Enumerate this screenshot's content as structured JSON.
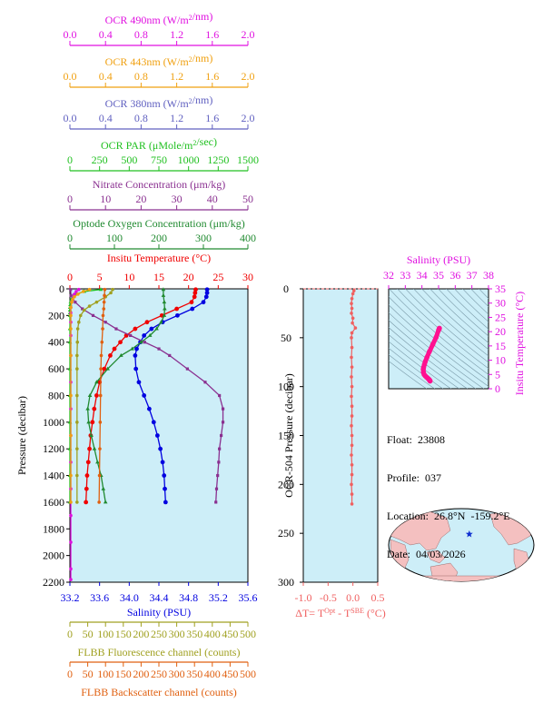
{
  "chart_data": [
    {
      "type": "line",
      "title": "",
      "ylabel": "Pressure (decibar)",
      "ylim": [
        2200,
        0
      ],
      "yticks": [
        0,
        200,
        400,
        600,
        800,
        1000,
        1200,
        1400,
        1600,
        1800,
        2000,
        2200
      ],
      "axes": {
        "ocr490": {
          "label": "OCR 490nm (W/m²/nm)",
          "range": [
            0,
            2
          ],
          "ticks": [
            "0.0",
            "0.4",
            "0.8",
            "1.2",
            "1.6",
            "2.0"
          ],
          "color": "#e010e0"
        },
        "ocr443": {
          "label": "OCR 443nm (W/m²/nm)",
          "range": [
            0,
            2
          ],
          "ticks": [
            "0.0",
            "0.4",
            "0.8",
            "1.2",
            "1.6",
            "2.0"
          ],
          "color": "#f0a010"
        },
        "ocr380": {
          "label": "OCR 380nm (W/m²/nm)",
          "range": [
            0,
            2
          ],
          "ticks": [
            "0.0",
            "0.4",
            "0.8",
            "1.2",
            "1.6",
            "2.0"
          ],
          "color": "#6060c0"
        },
        "ocrpar": {
          "label": "OCR PAR (μMole/m²/sec)",
          "range": [
            0,
            1500
          ],
          "ticks": [
            "0",
            "250",
            "500",
            "750",
            "1000",
            "1250",
            "1500"
          ],
          "color": "#20c020"
        },
        "nitrate": {
          "label": "Nitrate Concentration (μm/kg)",
          "range": [
            0,
            50
          ],
          "ticks": [
            "0",
            "10",
            "20",
            "30",
            "40",
            "50"
          ],
          "color": "#8a3090"
        },
        "oxygen": {
          "label": "Optode Oxygen Concentration (μm/kg)",
          "range": [
            0,
            400
          ],
          "ticks": [
            "0",
            "100",
            "200",
            "300",
            "400"
          ],
          "color": "#208a30"
        },
        "temp": {
          "label": "Insitu Temperature (°C)",
          "range": [
            0,
            30
          ],
          "ticks": [
            "0",
            "5",
            "10",
            "15",
            "20",
            "25",
            "30"
          ],
          "color": "#f00000"
        },
        "sal": {
          "label": "Salinity (PSU)",
          "range": [
            33.2,
            35.6
          ],
          "ticks": [
            "33.2",
            "33.6",
            "34.0",
            "34.4",
            "34.8",
            "35.2",
            "35.6"
          ],
          "color": "#0000e0"
        },
        "fluor": {
          "label": "FLBB Fluorescence channel (counts)",
          "range": [
            0,
            500
          ],
          "ticks": [
            "0",
            "50",
            "100",
            "150",
            "200",
            "250",
            "300",
            "350",
            "400",
            "450",
            "500"
          ],
          "color": "#a0a020"
        },
        "bbp": {
          "label": "FLBB Backscatter channel (counts)",
          "range": [
            0,
            500
          ],
          "ticks": [
            "0",
            "50",
            "100",
            "150",
            "200",
            "250",
            "300",
            "350",
            "400",
            "450",
            "500"
          ],
          "color": "#e06010"
        }
      },
      "series": [
        {
          "key": "temp",
          "color": "#f00000",
          "p": [
            5,
            30,
            60,
            100,
            150,
            200,
            250,
            300,
            350,
            400,
            450,
            500,
            600,
            700,
            800,
            900,
            1000,
            1100,
            1200,
            1300,
            1400,
            1500,
            1600
          ],
          "v": [
            21.2,
            21.1,
            21.0,
            20.5,
            18.0,
            15.5,
            13.0,
            11.0,
            9.5,
            8.5,
            7.5,
            6.8,
            5.8,
            5.0,
            4.5,
            4.1,
            3.8,
            3.5,
            3.3,
            3.1,
            2.9,
            2.8,
            2.7
          ]
        },
        {
          "key": "sal",
          "color": "#0000e0",
          "p": [
            5,
            30,
            60,
            100,
            150,
            200,
            250,
            300,
            350,
            400,
            450,
            500,
            600,
            700,
            800,
            900,
            1000,
            1100,
            1200,
            1300,
            1400,
            1500,
            1600
          ],
          "v": [
            35.05,
            35.05,
            35.04,
            35.0,
            34.85,
            34.65,
            34.45,
            34.3,
            34.2,
            34.15,
            34.1,
            34.08,
            34.09,
            34.13,
            34.2,
            34.27,
            34.33,
            34.38,
            34.42,
            34.45,
            34.47,
            34.48,
            34.49
          ]
        },
        {
          "key": "nitrate",
          "color": "#8a3090",
          "p": [
            5,
            50,
            100,
            150,
            200,
            250,
            300,
            350,
            400,
            450,
            500,
            600,
            700,
            800,
            900,
            1000,
            1100,
            1200,
            1300,
            1400,
            1500,
            1600
          ],
          "v": [
            0.2,
            0.3,
            1.5,
            3.5,
            6.5,
            10,
            13,
            17,
            21,
            25,
            28,
            33,
            38,
            42,
            43,
            43,
            42.5,
            42,
            41.8,
            41.5,
            41.2,
            41
          ]
        },
        {
          "key": "oxygen",
          "color": "#208a30",
          "p": [
            5,
            50,
            100,
            150,
            200,
            250,
            300,
            350,
            400,
            450,
            500,
            600,
            700,
            800,
            900,
            1000,
            1100,
            1200,
            1300,
            1400,
            1500,
            1600
          ],
          "v": [
            210,
            210,
            212,
            213,
            212,
            205,
            195,
            180,
            160,
            140,
            115,
            85,
            60,
            45,
            40,
            42,
            48,
            55,
            62,
            70,
            75,
            80
          ]
        },
        {
          "key": "ocrpar",
          "color": "#20c020",
          "p": [
            5,
            20,
            40,
            60,
            80,
            100,
            120,
            140,
            160,
            180,
            200,
            300,
            400,
            600,
            800,
            1000,
            1200,
            1400,
            1600
          ],
          "v": [
            260,
            120,
            55,
            25,
            12,
            6,
            3,
            1,
            0.5,
            0.3,
            0.2,
            0.1,
            0.1,
            0.1,
            0.1,
            0.1,
            0.1,
            0.1,
            0.1
          ]
        },
        {
          "key": "ocr490",
          "color": "#e010e0",
          "p": [
            5,
            20,
            40,
            60,
            80,
            100,
            140,
            180,
            250,
            350,
            500,
            700,
            900,
            1100,
            1300,
            1500,
            1700,
            1900,
            2100,
            2180
          ],
          "v": [
            0.1,
            0.07,
            0.05,
            0.04,
            0.03,
            0.02,
            0.01,
            0.01,
            0.01,
            0.01,
            0.01,
            0.01,
            0.01,
            0.01,
            0.01,
            0.01,
            0.01,
            0.01,
            0.01,
            0.01
          ]
        },
        {
          "key": "fluor",
          "color": "#a0a020",
          "p": [
            5,
            30,
            60,
            100,
            130,
            160,
            200,
            250,
            300,
            400,
            500,
            600,
            800,
            1000,
            1200,
            1400,
            1600
          ],
          "v": [
            120,
            115,
            100,
            75,
            55,
            40,
            30,
            25,
            22,
            21,
            20,
            20,
            20,
            20,
            20,
            20,
            20
          ]
        },
        {
          "key": "bbp",
          "color": "#e06010",
          "p": [
            5,
            50,
            100,
            150,
            200,
            300,
            400,
            500,
            600,
            800,
            1000,
            1200,
            1400,
            1600
          ],
          "v": [
            98,
            97,
            96,
            95,
            93,
            92,
            90,
            88,
            87,
            86,
            85,
            84,
            83,
            82
          ]
        },
        {
          "key": "ocr443",
          "color": "#f0a010",
          "p": [
            5,
            20,
            40,
            60,
            80,
            100,
            140,
            200,
            300,
            500,
            800,
            1100,
            1400,
            1600
          ],
          "v": [
            0.22,
            0.15,
            0.09,
            0.05,
            0.03,
            0.02,
            0.01,
            0.01,
            0.01,
            0.01,
            0.01,
            0.01,
            0.01,
            0.01
          ]
        }
      ],
      "bottom_ylabel_note": ""
    },
    {
      "type": "line",
      "title": "",
      "ylabel": "OCR-504 Pressure (decibar)",
      "xlabel": "ΔT= T^Opt - T^SBE (°C)",
      "xlim": [
        -1.0,
        0.5
      ],
      "xticks": [
        "-1.0",
        "-0.5",
        "0.0",
        "0.5"
      ],
      "ylim": [
        300,
        0
      ],
      "yticks": [
        "0",
        "50",
        "100",
        "150",
        "200",
        "250",
        "300"
      ],
      "series": [
        {
          "name": "",
          "color": "#f06060",
          "p": [
            2,
            5,
            10,
            15,
            20,
            25,
            30,
            35,
            40,
            45,
            50,
            60,
            70,
            80,
            90,
            100,
            110,
            120,
            130,
            140,
            150,
            160,
            170,
            180,
            190,
            200,
            210,
            220
          ],
          "v": [
            0.02,
            0.0,
            -0.02,
            -0.03,
            -0.02,
            -0.03,
            0.0,
            -0.01,
            0.05,
            -0.02,
            -0.03,
            -0.02,
            -0.03,
            -0.02,
            -0.03,
            -0.02,
            -0.03,
            -0.02,
            -0.02,
            -0.03,
            -0.02,
            -0.02,
            -0.03,
            -0.02,
            -0.02,
            -0.03,
            -0.02,
            -0.02
          ]
        }
      ]
    },
    {
      "type": "scatter",
      "title": "Salinity (PSU)",
      "xlabel": "Salinity (PSU)",
      "ylabel": "Insitu Temperature (°C)",
      "xlim": [
        32,
        38
      ],
      "xticks": [
        "32",
        "33",
        "34",
        "35",
        "36",
        "37",
        "38"
      ],
      "ylim": [
        0,
        35
      ],
      "yticks": [
        "0",
        "5",
        "10",
        "15",
        "20",
        "25",
        "30",
        "35"
      ],
      "series": [
        {
          "name": "",
          "color": "#ff1090",
          "s": [
            35.05,
            35.04,
            35.0,
            34.85,
            34.65,
            34.45,
            34.3,
            34.2,
            34.15,
            34.1,
            34.08,
            34.09,
            34.13,
            34.2,
            34.27,
            34.33,
            34.38,
            34.42,
            34.45,
            34.47,
            34.48,
            34.49
          ],
          "t": [
            21.2,
            21.0,
            20.5,
            18.0,
            15.5,
            13.0,
            11.0,
            9.5,
            8.5,
            7.5,
            6.8,
            5.8,
            5.0,
            4.5,
            4.1,
            3.8,
            3.5,
            3.3,
            3.1,
            2.9,
            2.8,
            2.7
          ]
        }
      ]
    }
  ],
  "info": {
    "float": "Float:  23808",
    "profile": "Profile:  037",
    "location": "Location:  26.8°N  -159.2°E",
    "date": "Date:  04/03/2026"
  },
  "map": {
    "marker_lat": 26.8,
    "marker_lon": -159.2
  }
}
